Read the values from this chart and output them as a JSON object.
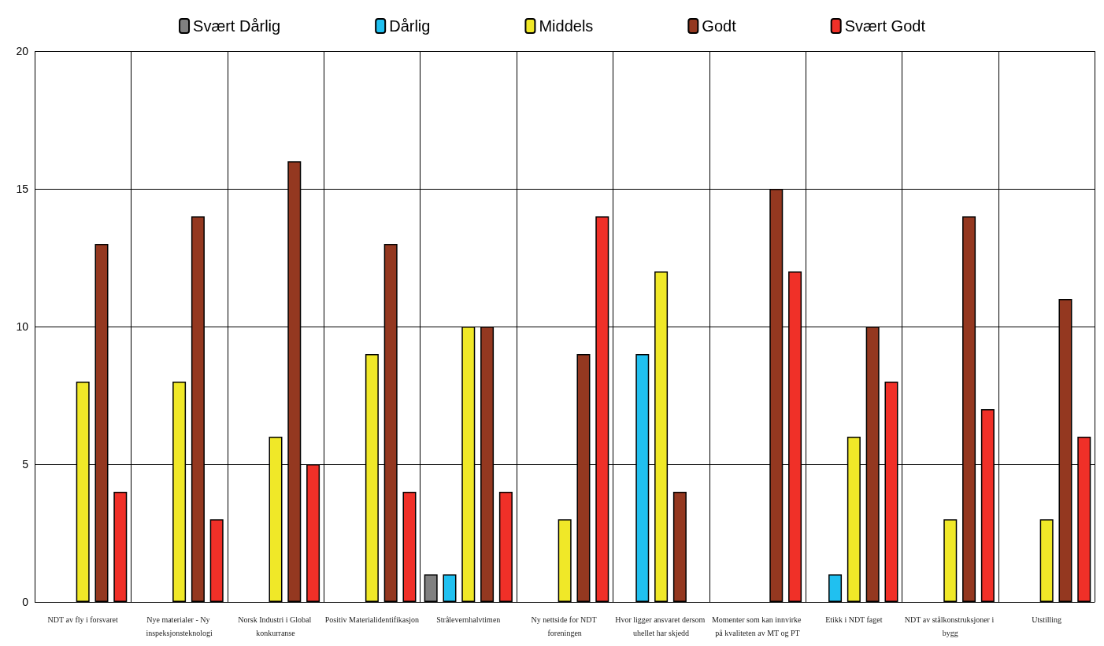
{
  "chart_data": {
    "type": "bar",
    "categories": [
      "NDT av fly i forsvaret",
      "Nye materialer - Ny inspeksjonsteknologi",
      "Norsk Industri i Global konkurranse",
      "Positiv Materialidentifikasjon",
      "Strålevernhalvtimen",
      "Ny nettside for NDT foreningen",
      "Hvor ligger ansvaret dersom uhellet har skjedd",
      "Momenter som kan innvirke på kvaliteten av MT og PT",
      "Etikk i NDT faget",
      "NDT av stålkonstruksjoner i bygg",
      "Utstilling"
    ],
    "series": [
      {
        "name": "Svært Dårlig",
        "color": "#808080",
        "values": [
          0,
          0,
          0,
          0,
          1,
          0,
          0,
          0,
          0,
          0,
          0
        ]
      },
      {
        "name": "Dårlig",
        "color": "#20c0f0",
        "values": [
          0,
          0,
          0,
          0,
          1,
          0,
          9,
          0,
          1,
          0,
          0
        ]
      },
      {
        "name": "Middels",
        "color": "#f0e828",
        "values": [
          8,
          8,
          6,
          9,
          10,
          3,
          12,
          0,
          6,
          3,
          3
        ]
      },
      {
        "name": "Godt",
        "color": "#943820",
        "values": [
          13,
          14,
          16,
          13,
          10,
          9,
          4,
          15,
          10,
          14,
          11
        ]
      },
      {
        "name": "Svært Godt",
        "color": "#f03028",
        "values": [
          4,
          3,
          5,
          4,
          4,
          14,
          0,
          12,
          8,
          7,
          6
        ]
      }
    ],
    "ylim": [
      0,
      20
    ],
    "yticks": [
      0,
      5,
      10,
      15,
      20
    ],
    "grid": true,
    "legend": "top"
  }
}
